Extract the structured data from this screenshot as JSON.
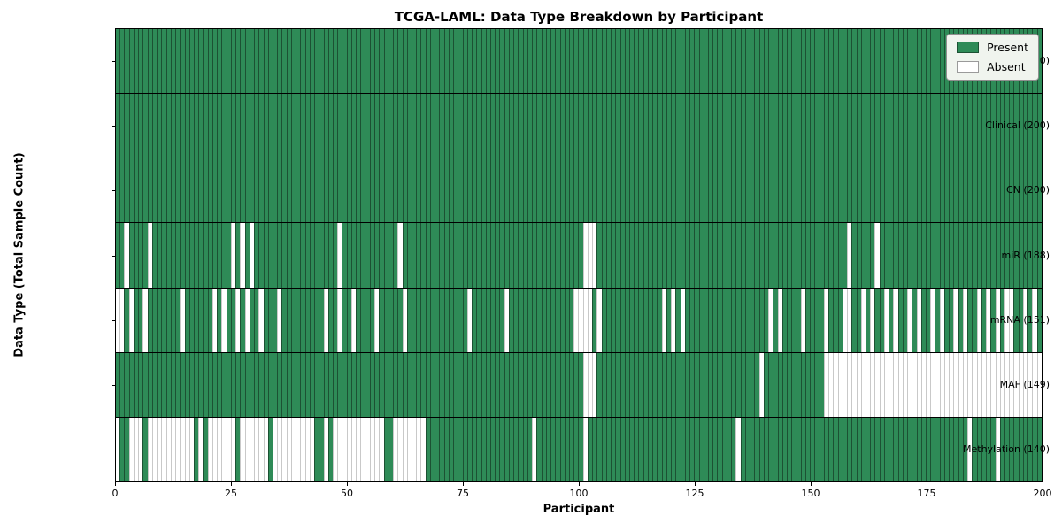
{
  "chart_data": {
    "type": "heatmap",
    "title": "TCGA-LAML: Data Type Breakdown by Participant",
    "xlabel": "Participant",
    "ylabel": "Data Type (Total Sample Count)",
    "x_range": [
      0,
      200
    ],
    "x_ticks": [
      0,
      25,
      50,
      75,
      100,
      125,
      150,
      175,
      200
    ],
    "n_participants": 200,
    "grid": false,
    "legend_position": "upper right",
    "legend": [
      {
        "label": "Present",
        "state": "present"
      },
      {
        "label": "Absent",
        "state": "absent"
      }
    ],
    "colors": {
      "present_fill": "#2e8b57",
      "present_edge": "#1c5133",
      "absent_fill": "#ffffff",
      "absent_edge": "#c9c9c9",
      "row_divider": "#000000",
      "plot_border": "#000000",
      "legend_bg": "#f0f4ee"
    },
    "rows": [
      {
        "name": "BCR",
        "label": "BCR (200)",
        "present_count": 200,
        "absent": []
      },
      {
        "name": "Clinical",
        "label": "Clinical (200)",
        "present_count": 200,
        "absent": []
      },
      {
        "name": "CN",
        "label": "CN (200)",
        "present_count": 200,
        "absent": []
      },
      {
        "name": "miR",
        "label": "miR (188)",
        "present_count": 188,
        "absent": [
          2,
          7,
          25,
          27,
          29,
          48,
          61,
          101,
          102,
          103,
          158,
          164
        ]
      },
      {
        "name": "mRNA",
        "label": "mRNA (151)",
        "present_count": 151,
        "absent": [
          0,
          1,
          3,
          6,
          14,
          21,
          23,
          26,
          28,
          31,
          35,
          45,
          48,
          51,
          56,
          62,
          76,
          84,
          99,
          100,
          101,
          102,
          104,
          118,
          120,
          122,
          141,
          143,
          148,
          153,
          157,
          158,
          161,
          163,
          166,
          168,
          171,
          173,
          176,
          178,
          181,
          183,
          186,
          188,
          190,
          192,
          193,
          196,
          198
        ]
      },
      {
        "name": "MAF",
        "label": "MAF (149)",
        "present_count": 149,
        "absent": [
          101,
          102,
          103,
          139,
          153,
          154,
          155,
          156,
          157,
          158,
          159,
          160,
          161,
          162,
          163,
          164,
          165,
          166,
          167,
          168,
          169,
          170,
          171,
          172,
          173,
          174,
          175,
          176,
          177,
          178,
          179,
          180,
          181,
          182,
          183,
          184,
          185,
          186,
          187,
          188,
          189,
          190,
          191,
          192,
          193,
          194,
          195,
          196,
          197,
          198,
          199
        ]
      },
      {
        "name": "Methylation",
        "label": "Methylation (140)",
        "present_count": 140,
        "absent": [
          0,
          3,
          4,
          5,
          7,
          8,
          9,
          10,
          11,
          12,
          13,
          14,
          15,
          16,
          18,
          20,
          21,
          22,
          23,
          24,
          25,
          27,
          28,
          29,
          30,
          31,
          32,
          34,
          35,
          36,
          37,
          38,
          39,
          40,
          41,
          42,
          45,
          47,
          48,
          49,
          50,
          51,
          52,
          53,
          54,
          55,
          56,
          57,
          60,
          61,
          62,
          63,
          64,
          65,
          66,
          90,
          101,
          134,
          184,
          190
        ]
      }
    ]
  }
}
